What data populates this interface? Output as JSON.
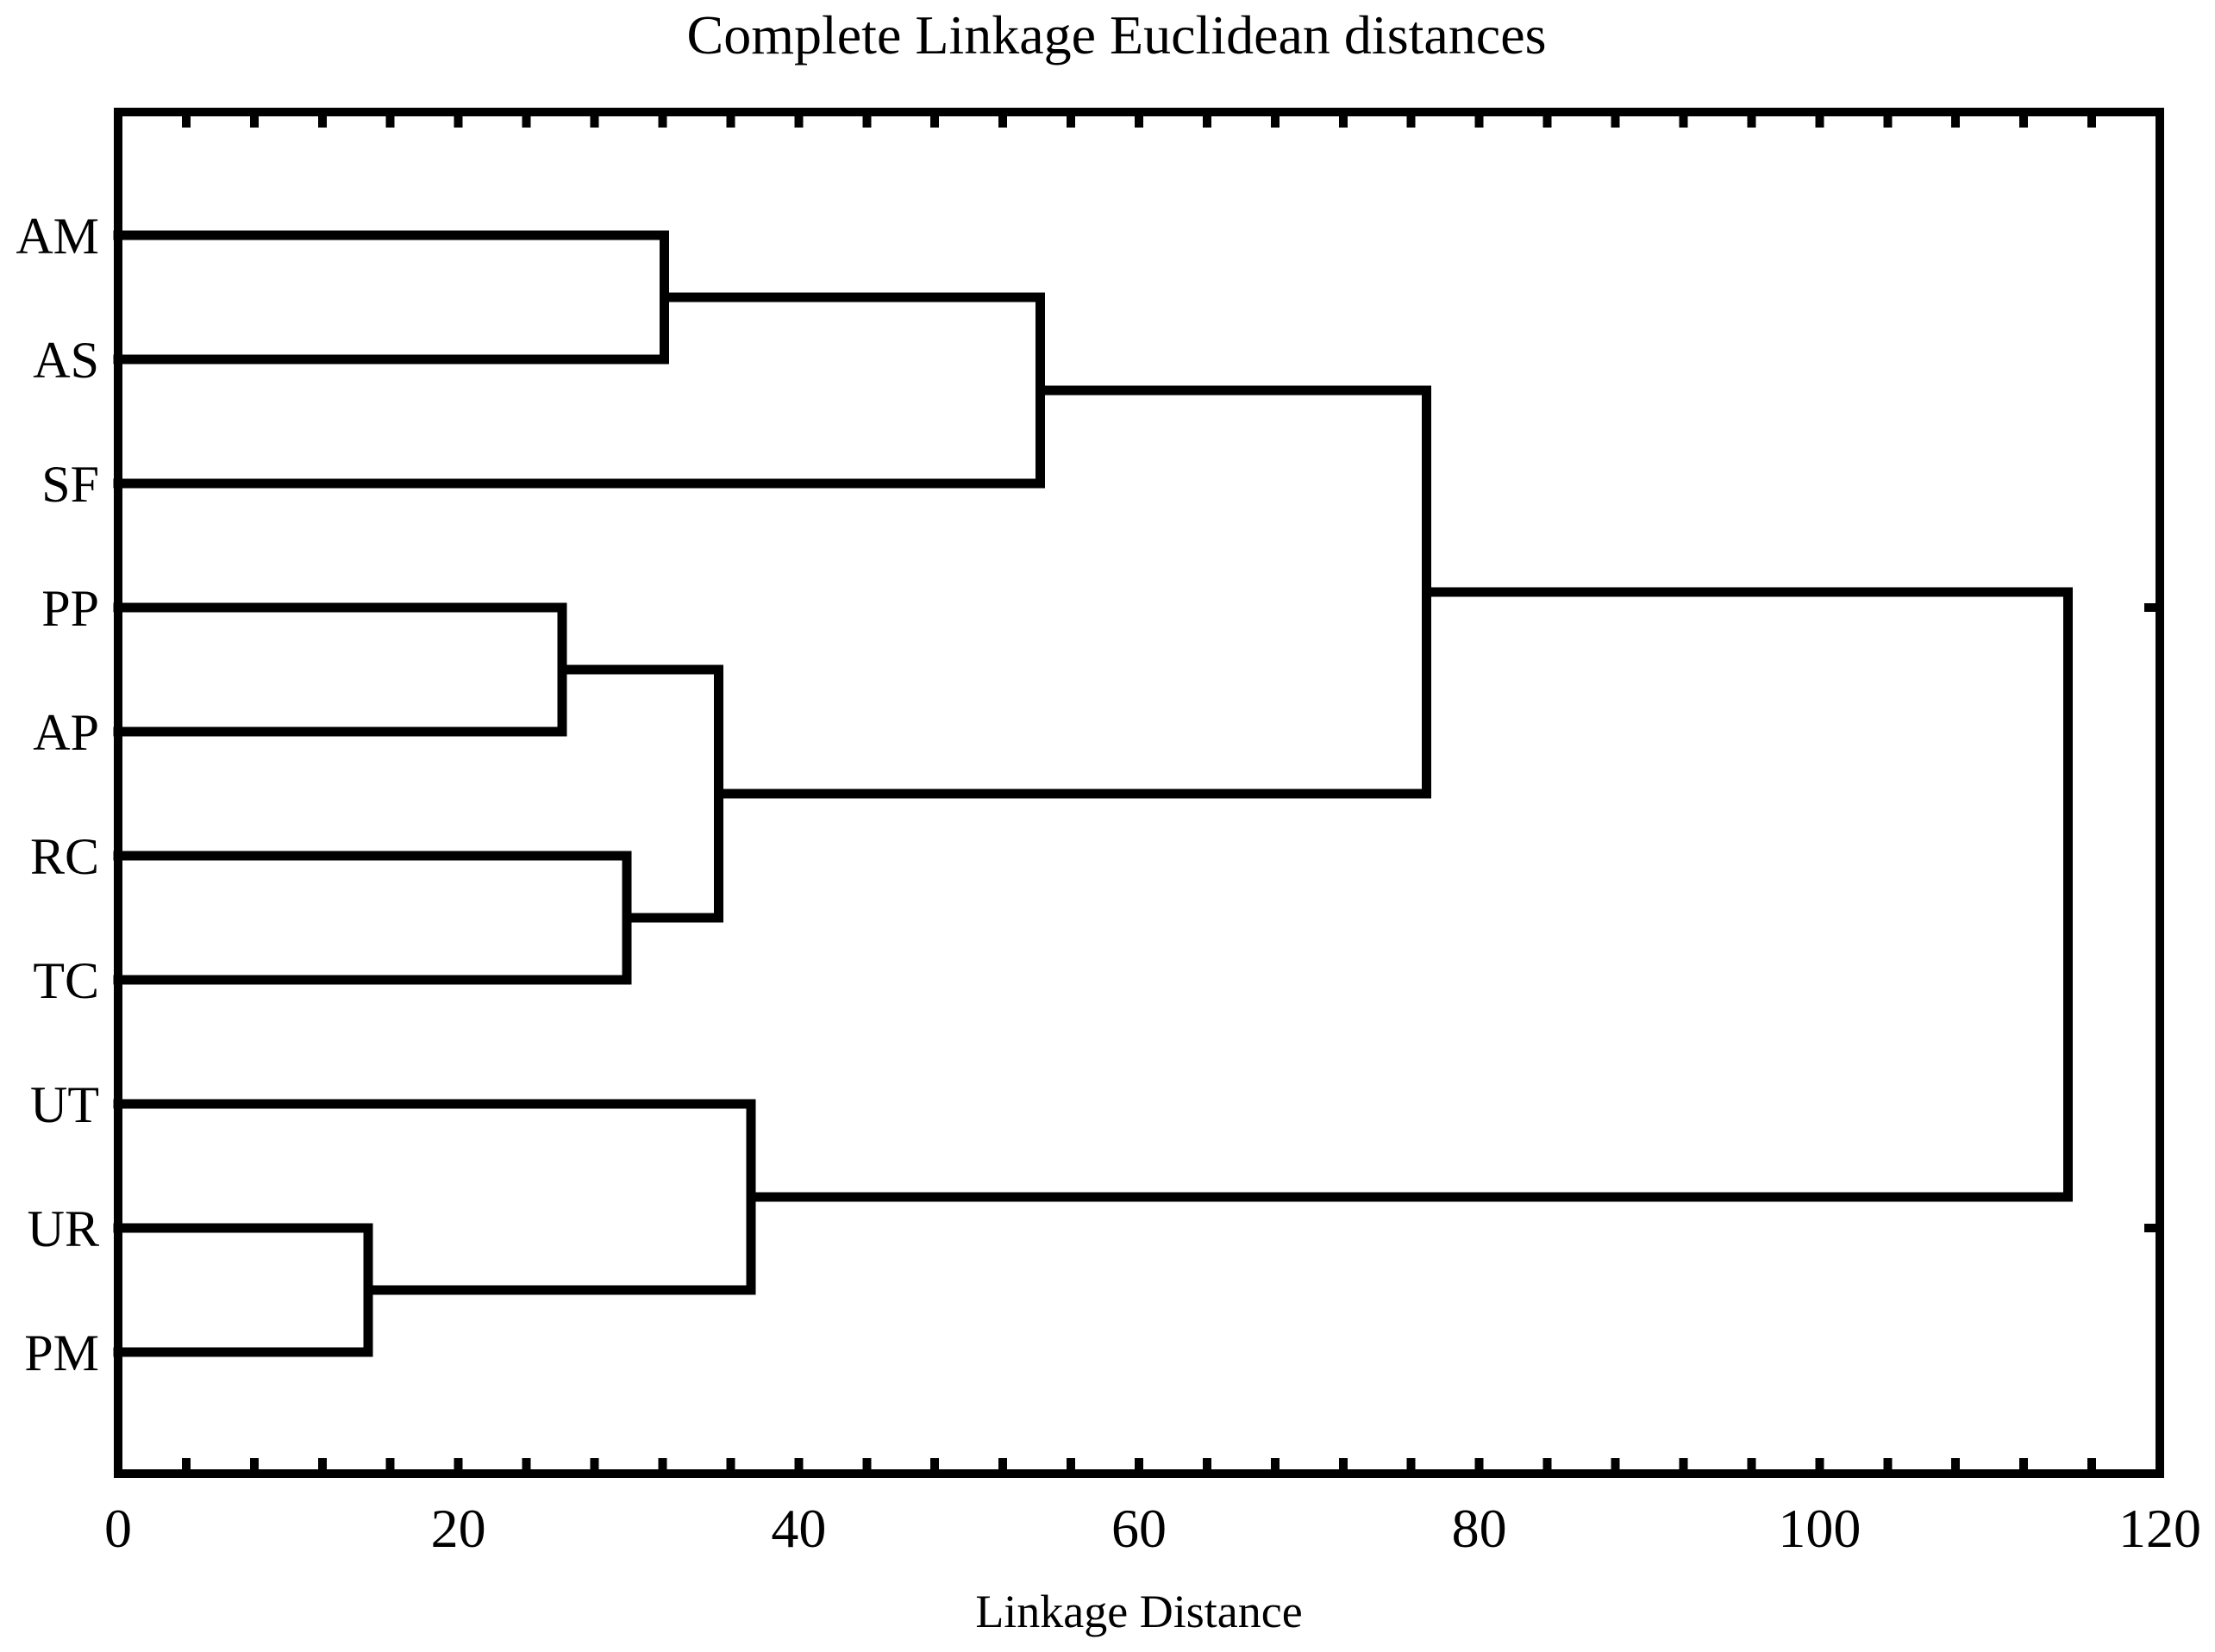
{
  "page": {
    "background": "#ffffff",
    "text_color": "#000000"
  },
  "chart_data": {
    "type": "dendrogram",
    "orientation": "horizontal",
    "title": "Complete Linkage Euclidean distances",
    "xlabel": "Linkage Distance",
    "line_color": "#000000",
    "xlim": [
      0,
      120
    ],
    "x_major_ticks": [
      0,
      20,
      40,
      60,
      80,
      100,
      120
    ],
    "x_major_tick_labels": [
      "0",
      "20",
      "40",
      "60",
      "80",
      "100",
      "120"
    ],
    "x_minor_tick_step": 4,
    "grid": "off",
    "legend": "none",
    "leaves_top_to_bottom": [
      "AM",
      "AS",
      "SF",
      "PP",
      "AP",
      "RC",
      "TC",
      "UT",
      "UR",
      "PM"
    ],
    "merges": [
      {
        "id": "UR+PM",
        "children": [
          "UR",
          "PM"
        ],
        "distance": 14.7
      },
      {
        "id": "PP+AP",
        "children": [
          "PP",
          "AP"
        ],
        "distance": 26.1
      },
      {
        "id": "RC+TC",
        "children": [
          "RC",
          "TC"
        ],
        "distance": 29.9
      },
      {
        "id": "AM+AS",
        "children": [
          "AM",
          "AS"
        ],
        "distance": 32.1
      },
      {
        "id": "PPAP+RCTC",
        "children": [
          "PP+AP",
          "RC+TC"
        ],
        "distance": 35.3
      },
      {
        "id": "UT+URPM",
        "children": [
          "UT",
          "UR+PM"
        ],
        "distance": 37.2
      },
      {
        "id": "AMAS+SF",
        "children": [
          "AM+AS",
          "SF"
        ],
        "distance": 54.2
      },
      {
        "id": "UPPER7",
        "children": [
          "AMAS+SF",
          "PPAP+RCTC"
        ],
        "distance": 76.9
      },
      {
        "id": "ROOT",
        "children": [
          "UPPER7",
          "UT+URPM"
        ],
        "distance": 114.6
      }
    ],
    "right_border_ticks_at_leaves": [
      "PP",
      "UR"
    ]
  }
}
